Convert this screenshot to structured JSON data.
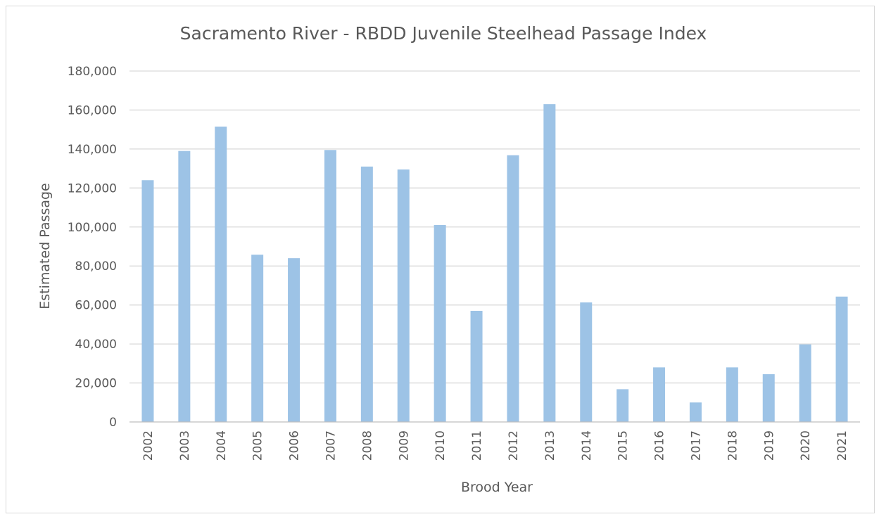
{
  "chart_data": {
    "type": "bar",
    "title": "Sacramento River - RBDD Juvenile Steelhead Passage Index",
    "xlabel": "Brood Year",
    "ylabel": "Estimated Passage",
    "categories": [
      "2002",
      "2003",
      "2004",
      "2005",
      "2006",
      "2007",
      "2008",
      "2009",
      "2010",
      "2011",
      "2012",
      "2013",
      "2014",
      "2015",
      "2016",
      "2017",
      "2018",
      "2019",
      "2020",
      "2021"
    ],
    "values": [
      124000,
      139000,
      151500,
      85800,
      84000,
      139500,
      131000,
      129500,
      101000,
      57000,
      136800,
      163000,
      61300,
      16800,
      28000,
      10000,
      28000,
      24500,
      39800,
      64300
    ],
    "ylim": [
      0,
      180000
    ],
    "yticks": [
      "0",
      "20,000",
      "40,000",
      "60,000",
      "80,000",
      "100,000",
      "120,000",
      "140,000",
      "160,000",
      "180,000"
    ],
    "grid": true,
    "legend": "none",
    "bar_color": "#9dc3e6",
    "gridline_color": "#d9d9d9",
    "text_color": "#595959"
  }
}
